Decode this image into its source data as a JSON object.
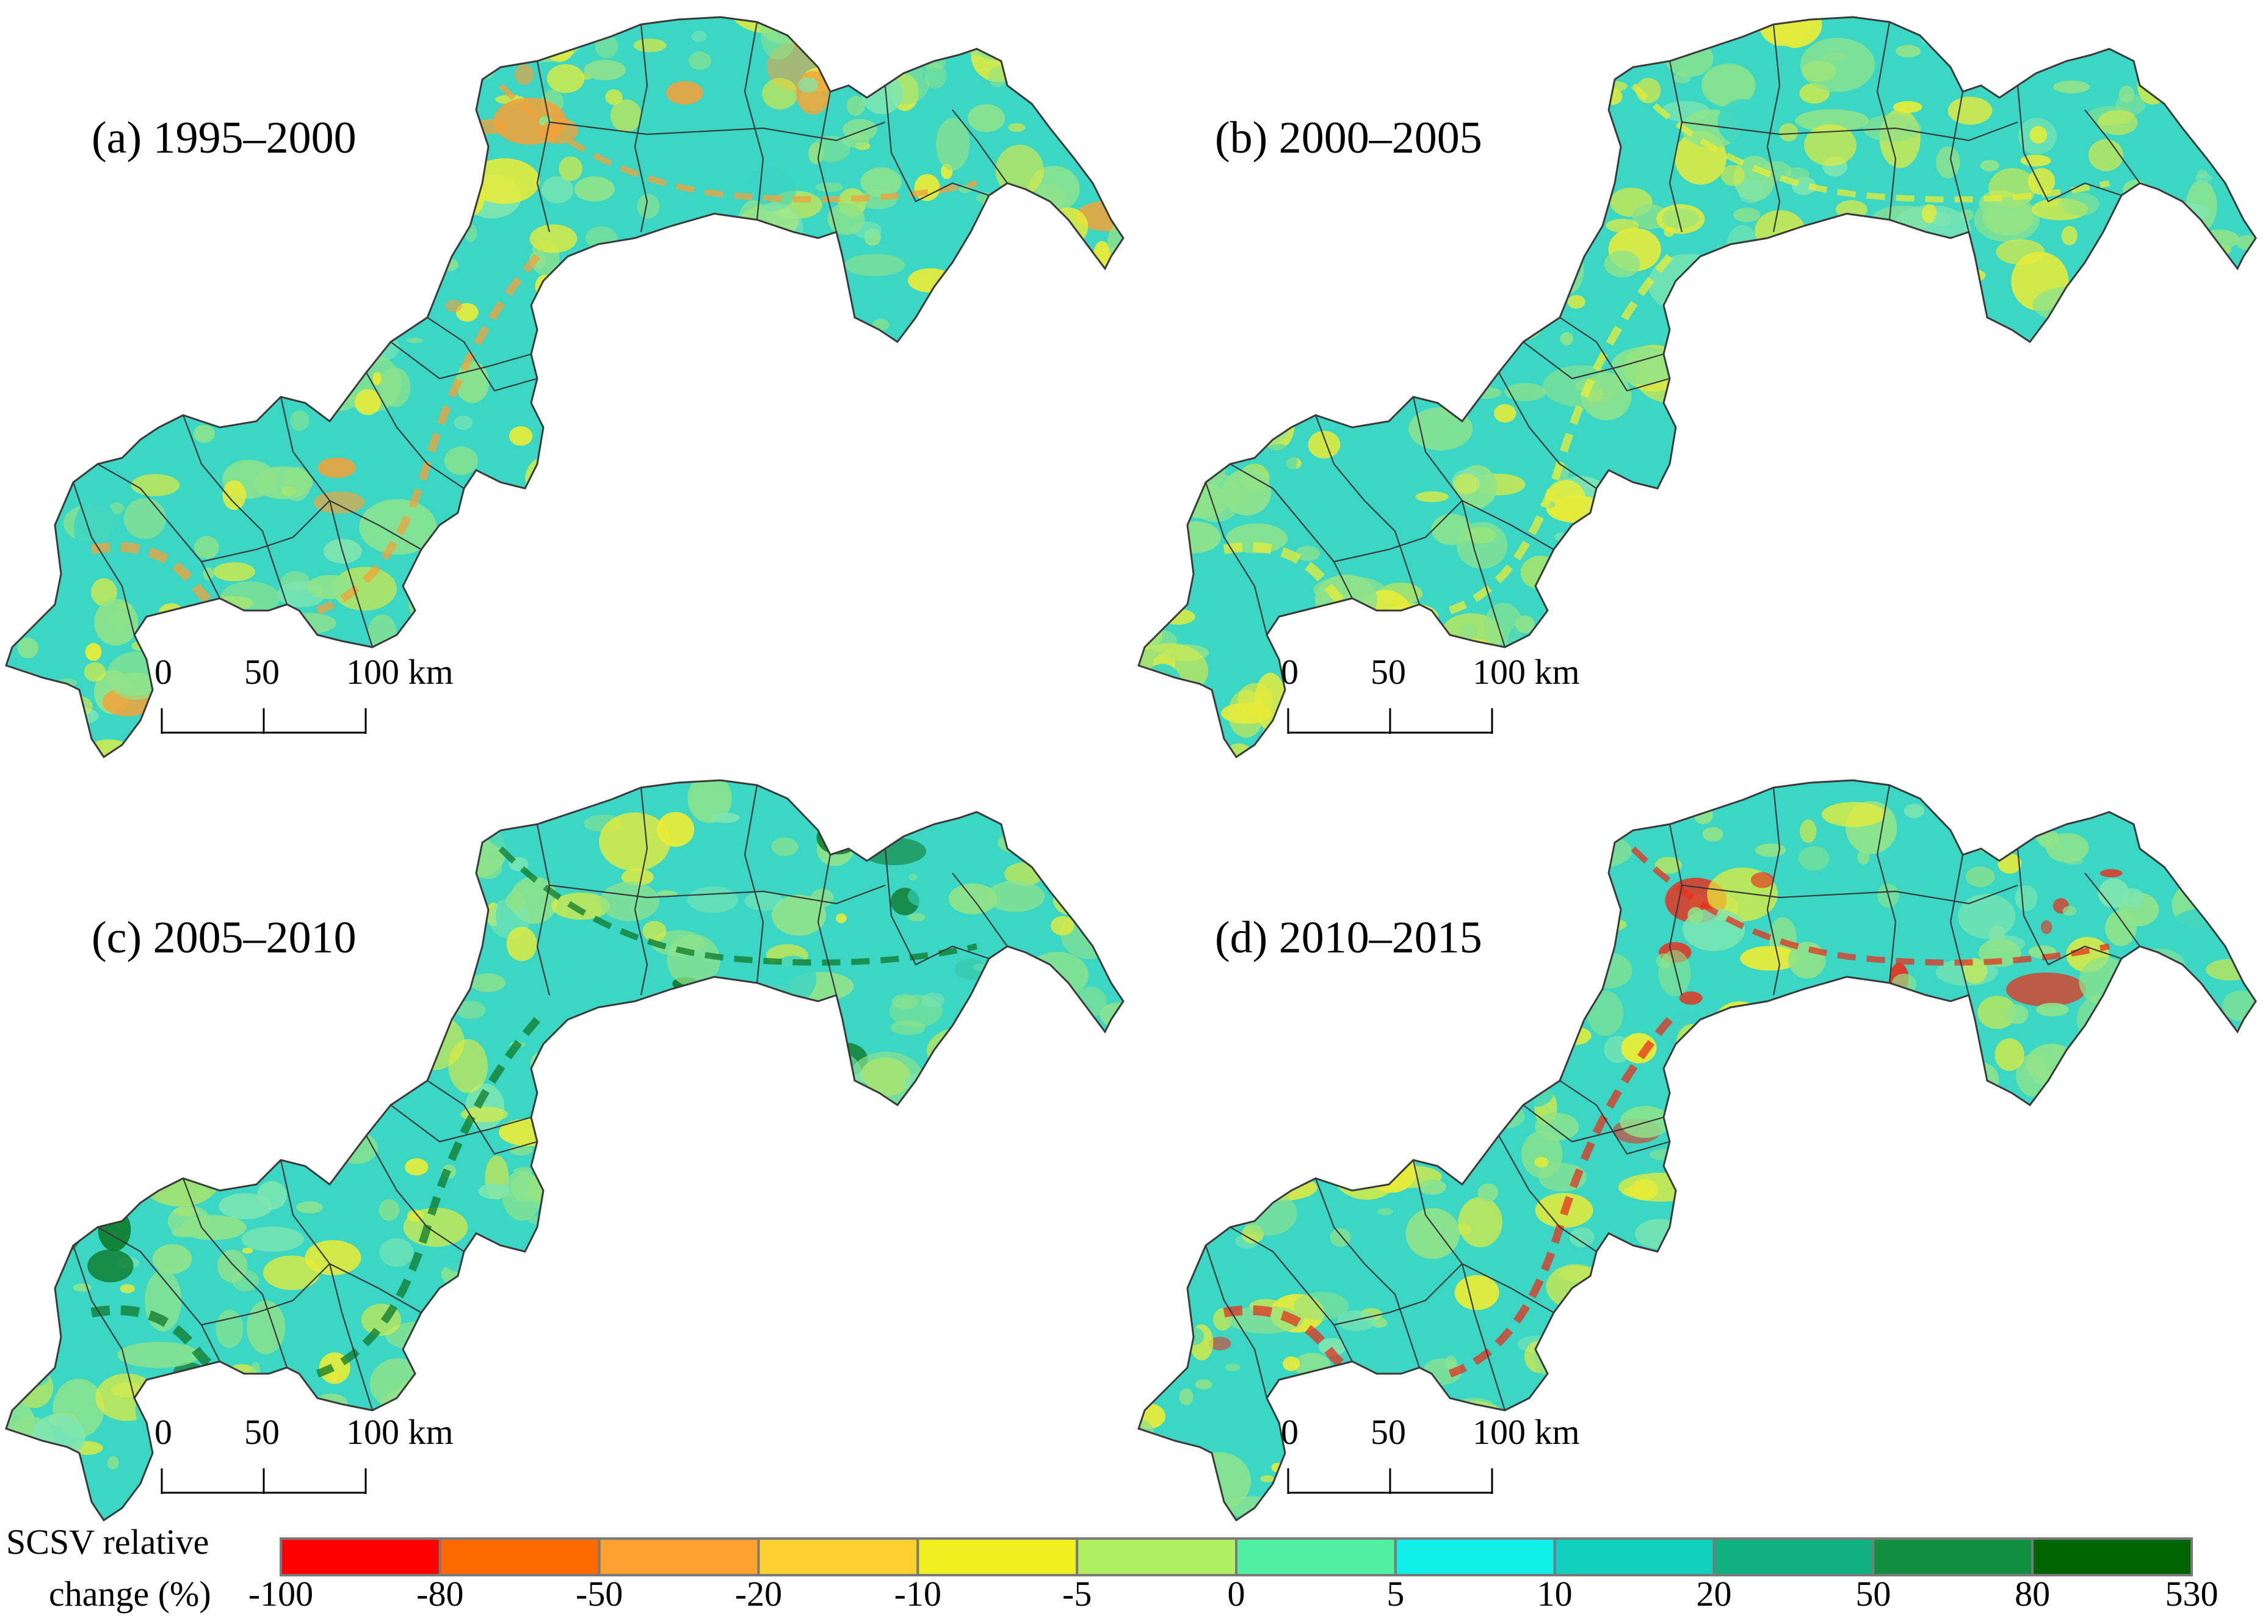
{
  "panels": [
    {
      "id": "a",
      "label": "(a) 1995–2000"
    },
    {
      "id": "b",
      "label": "(b) 2000–2005"
    },
    {
      "id": "c",
      "label": "(c) 2005–2010"
    },
    {
      "id": "d",
      "label": "(d) 2010–2015"
    }
  ],
  "scale_bar": {
    "ticks": [
      "0",
      "50",
      "100 km"
    ]
  },
  "legend": {
    "title_line1": "SCSV relative",
    "title_line2": "change (%)",
    "breaks": [
      "-100",
      "-80",
      "-50",
      "-20",
      "-10",
      "-5",
      "0",
      "5",
      "10",
      "20",
      "50",
      "80",
      "530"
    ],
    "colors": [
      "#ff0000",
      "#ff6a00",
      "#ffa030",
      "#ffd030",
      "#f0f020",
      "#b0f060",
      "#50f0a0",
      "#10f0e8",
      "#10d0c0",
      "#10b080",
      "#109040",
      "#006400"
    ]
  },
  "map_palette": {
    "base_teal": "#3cd6c4",
    "green": "#8fe38a",
    "yellow": "#e8ec38",
    "orange": "#f3a23a",
    "red": "#e8301e",
    "dark_green": "#0f7a2a",
    "boundary": "#3a3a3a"
  },
  "panel_hotspots": {
    "a": "orange",
    "b": "yellow",
    "c": "dark_green",
    "d": "red"
  }
}
